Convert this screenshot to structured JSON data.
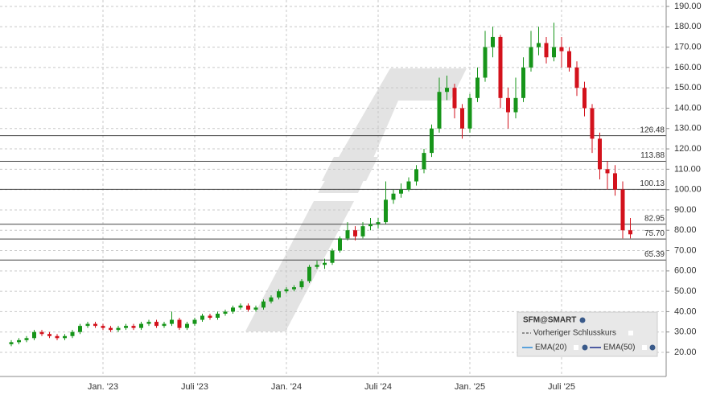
{
  "chart_data": {
    "type": "candlestick",
    "categories": [
      null,
      null,
      null,
      null,
      null,
      null,
      null,
      null,
      null,
      null,
      null,
      null,
      "Jan. '23",
      null,
      null,
      null,
      null,
      null,
      null,
      null,
      null,
      null,
      null,
      null,
      "Juli '23",
      null,
      null,
      null,
      null,
      null,
      null,
      null,
      null,
      null,
      null,
      null,
      "Jan. '24",
      null,
      null,
      null,
      null,
      null,
      null,
      null,
      null,
      null,
      null,
      null,
      "Juli '24",
      null,
      null,
      null,
      null,
      null,
      null,
      null,
      null,
      null,
      null,
      null,
      "Jan. '25",
      null,
      null,
      null,
      null,
      null,
      null,
      null,
      null,
      null,
      null,
      null,
      "Juli '25",
      null,
      null,
      null,
      null,
      null,
      null,
      null,
      null,
      null
    ],
    "open": [
      24,
      25,
      26,
      27,
      30,
      29,
      28,
      27,
      28,
      30,
      33,
      34,
      33,
      32,
      31,
      32,
      33,
      32,
      34,
      35,
      33,
      34,
      36,
      32,
      34,
      36,
      38,
      37,
      39,
      40,
      42,
      43,
      41,
      42,
      45,
      47,
      50,
      51,
      52,
      55,
      62,
      63,
      64,
      70,
      76,
      80,
      77,
      82,
      83,
      84,
      95,
      98,
      100,
      104,
      110,
      118,
      130,
      148,
      150,
      140,
      130,
      145,
      155,
      170,
      175,
      145,
      138,
      145,
      160,
      170,
      172,
      165,
      170,
      168,
      160,
      150,
      140,
      125,
      110,
      108,
      100,
      80
    ],
    "high": [
      26,
      27,
      28,
      31,
      31,
      30,
      29,
      29,
      31,
      34,
      35,
      35,
      34,
      33,
      33,
      34,
      34,
      35,
      36,
      36,
      35,
      40,
      37,
      35,
      37,
      39,
      39,
      40,
      41,
      43,
      44,
      44,
      43,
      46,
      48,
      51,
      52,
      53,
      56,
      63,
      65,
      66,
      71,
      77,
      84,
      82,
      84,
      86,
      86,
      104,
      100,
      103,
      106,
      112,
      120,
      132,
      155,
      156,
      152,
      142,
      147,
      160,
      178,
      180,
      176,
      150,
      155,
      165,
      178,
      180,
      175,
      182,
      175,
      170,
      163,
      153,
      142,
      128,
      114,
      112,
      104,
      86
    ],
    "low": [
      23,
      24,
      25,
      26,
      28,
      27,
      26,
      26,
      27,
      29,
      32,
      32,
      31,
      30,
      30,
      31,
      31,
      31,
      33,
      32,
      32,
      33,
      31,
      31,
      33,
      35,
      36,
      36,
      38,
      39,
      41,
      40,
      40,
      41,
      44,
      46,
      49,
      50,
      51,
      54,
      61,
      61,
      63,
      69,
      75,
      75,
      76,
      80,
      81,
      83,
      93,
      96,
      99,
      102,
      108,
      116,
      128,
      144,
      135,
      125,
      128,
      143,
      153,
      165,
      140,
      130,
      135,
      143,
      158,
      166,
      162,
      163,
      160,
      158,
      146,
      136,
      118,
      105,
      100,
      97,
      76,
      76
    ],
    "close": [
      25,
      26,
      27,
      30,
      29,
      28,
      27,
      28,
      30,
      33,
      34,
      33,
      32,
      31,
      32,
      33,
      32,
      34,
      35,
      33,
      34,
      36,
      32,
      34,
      36,
      38,
      37,
      39,
      40,
      42,
      43,
      41,
      42,
      45,
      47,
      50,
      51,
      52,
      55,
      62,
      63,
      64,
      70,
      76,
      80,
      77,
      82,
      83,
      84,
      95,
      98,
      100,
      104,
      110,
      118,
      130,
      148,
      150,
      140,
      130,
      145,
      155,
      170,
      175,
      145,
      138,
      145,
      160,
      170,
      172,
      165,
      170,
      168,
      160,
      150,
      140,
      125,
      110,
      108,
      100,
      80,
      78
    ],
    "up_color": "#17951a",
    "down_color": "#d3121c",
    "ylim": [
      15,
      192
    ],
    "yticks": [
      {
        "value": 20,
        "label": "20.00"
      },
      {
        "value": 30,
        "label": "30.00"
      },
      {
        "value": 40,
        "label": "40.00"
      },
      {
        "value": 50,
        "label": "50.00"
      },
      {
        "value": 60,
        "label": "60.00"
      },
      {
        "value": 70,
        "label": "70.00"
      },
      {
        "value": 80,
        "label": "80.00"
      },
      {
        "value": 90,
        "label": "90.00"
      },
      {
        "value": 100,
        "label": "100.00"
      },
      {
        "value": 110,
        "label": "110.00"
      },
      {
        "value": 120,
        "label": "120.00"
      },
      {
        "value": 130,
        "label": "130.00"
      },
      {
        "value": 140,
        "label": "140.00"
      },
      {
        "value": 150,
        "label": "150.00"
      },
      {
        "value": 160,
        "label": "160.00"
      },
      {
        "value": 170,
        "label": "170.00"
      },
      {
        "value": 180,
        "label": "180.00"
      },
      {
        "value": 190,
        "label": "190.00"
      }
    ],
    "grid": true,
    "level_lines": [
      126.48,
      113.88,
      100.13,
      82.95,
      {
        "value": 75.7,
        "label": "75.70"
      },
      65.39
    ],
    "legend": {
      "title": "SFM@SMART",
      "items": [
        "Vorheriger Schlusskurs",
        "EMA(20)",
        "EMA(50)"
      ]
    }
  }
}
